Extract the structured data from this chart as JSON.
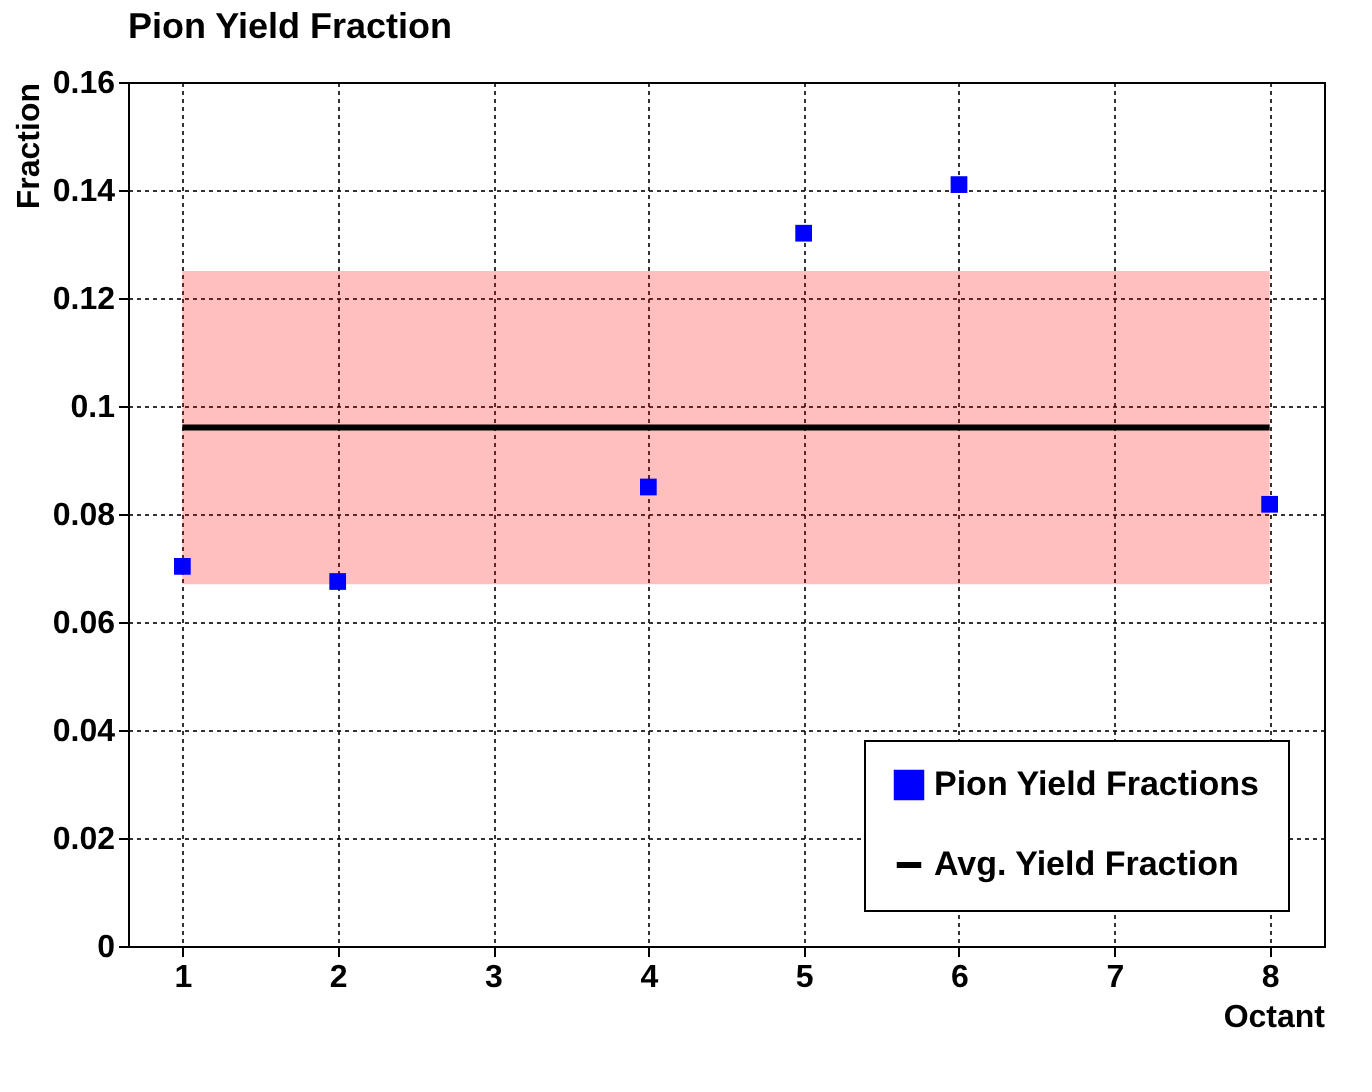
{
  "chart_data": {
    "type": "scatter",
    "title": "Pion Yield Fraction",
    "xlabel": "Octant",
    "ylabel": "Fraction",
    "xlim": [
      0.65,
      8.35
    ],
    "xticks": [
      1,
      2,
      3,
      4,
      5,
      6,
      7,
      8
    ],
    "ylim": [
      0,
      0.16
    ],
    "yticks": [
      0,
      0.02,
      0.04,
      0.06,
      0.08,
      0.1,
      0.12,
      0.14,
      0.16
    ],
    "grid": true,
    "legend": "bottom right",
    "bands": [
      {
        "axis": "y",
        "from": 0.067,
        "to": 0.125,
        "color": "#ff0000"
      }
    ],
    "series": [
      {
        "name": "Pion Yield Fractions",
        "marker": "square",
        "color": "#0000ff",
        "x": [
          1,
          2,
          4,
          5,
          6,
          8
        ],
        "values": [
          0.0703,
          0.0675,
          0.085,
          0.132,
          0.141,
          0.0818
        ]
      },
      {
        "name": "Avg. Yield Fraction",
        "type": "line",
        "marker": "none",
        "color": "#000000",
        "line_style": "solid",
        "x": [
          1,
          8
        ],
        "values": [
          0.096,
          0.096
        ]
      }
    ]
  }
}
